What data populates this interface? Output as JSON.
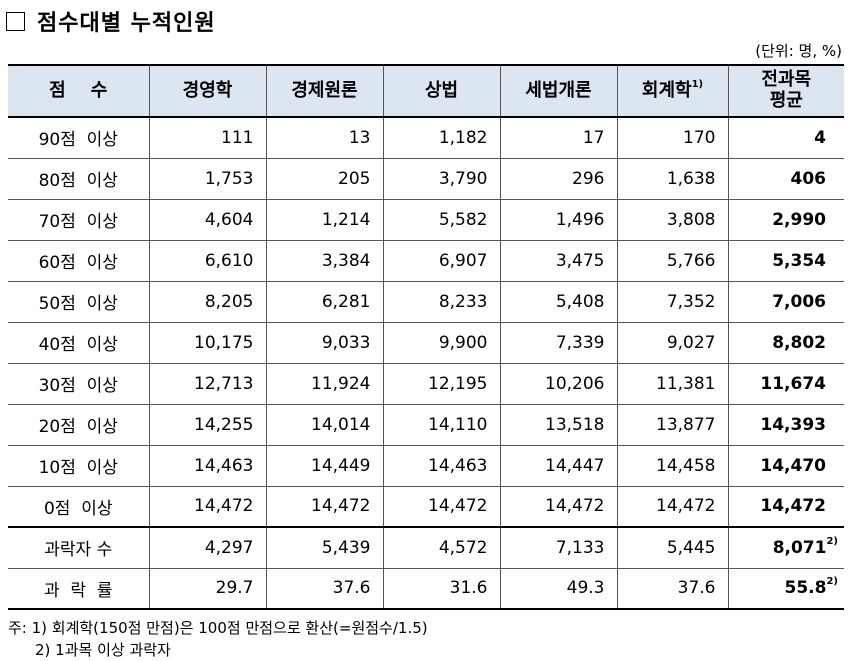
{
  "title": "점수대별 누적인원",
  "unit": "(단위: 명, %)",
  "headers": {
    "score": "점    수",
    "subjects": [
      {
        "label": "경영학",
        "sup": ""
      },
      {
        "label": "경제원론",
        "sup": ""
      },
      {
        "label": "상법",
        "sup": ""
      },
      {
        "label": "세법개론",
        "sup": ""
      },
      {
        "label": "회계학",
        "sup": "1)"
      }
    ],
    "avg_line1": "전과목",
    "avg_line2": "평균"
  },
  "rows": [
    {
      "label": "90점  이상",
      "values": [
        "111",
        "13",
        "1,182",
        "17",
        "170"
      ],
      "avg": "4",
      "avg_sup": ""
    },
    {
      "label": "80점  이상",
      "values": [
        "1,753",
        "205",
        "3,790",
        "296",
        "1,638"
      ],
      "avg": "406",
      "avg_sup": ""
    },
    {
      "label": "70점  이상",
      "values": [
        "4,604",
        "1,214",
        "5,582",
        "1,496",
        "3,808"
      ],
      "avg": "2,990",
      "avg_sup": ""
    },
    {
      "label": "60점  이상",
      "values": [
        "6,610",
        "3,384",
        "6,907",
        "3,475",
        "5,766"
      ],
      "avg": "5,354",
      "avg_sup": ""
    },
    {
      "label": "50점  이상",
      "values": [
        "8,205",
        "6,281",
        "8,233",
        "5,408",
        "7,352"
      ],
      "avg": "7,006",
      "avg_sup": ""
    },
    {
      "label": "40점  이상",
      "values": [
        "10,175",
        "9,033",
        "9,900",
        "7,339",
        "9,027"
      ],
      "avg": "8,802",
      "avg_sup": ""
    },
    {
      "label": "30점  이상",
      "values": [
        "12,713",
        "11,924",
        "12,195",
        "10,206",
        "11,381"
      ],
      "avg": "11,674",
      "avg_sup": ""
    },
    {
      "label": "20점  이상",
      "values": [
        "14,255",
        "14,014",
        "14,110",
        "13,518",
        "13,877"
      ],
      "avg": "14,393",
      "avg_sup": ""
    },
    {
      "label": "10점  이상",
      "values": [
        "14,463",
        "14,449",
        "14,463",
        "14,447",
        "14,458"
      ],
      "avg": "14,470",
      "avg_sup": ""
    },
    {
      "label": "0점  이상",
      "values": [
        "14,472",
        "14,472",
        "14,472",
        "14,472",
        "14,472"
      ],
      "avg": "14,472",
      "avg_sup": ""
    },
    {
      "label": "과락자 수",
      "values": [
        "4,297",
        "5,439",
        "4,572",
        "7,133",
        "5,445"
      ],
      "avg": "8,071",
      "avg_sup": "2)"
    },
    {
      "label": "과  락  률",
      "values": [
        "29.7",
        "37.6",
        "31.6",
        "49.3",
        "37.6"
      ],
      "avg": "55.8",
      "avg_sup": "2)"
    }
  ],
  "notes": [
    "주: 1) 회계학(150점 만점)은 100점 만점으로 환산(=원점수/1.5)",
    "2) 1과목 이상 과락자"
  ]
}
